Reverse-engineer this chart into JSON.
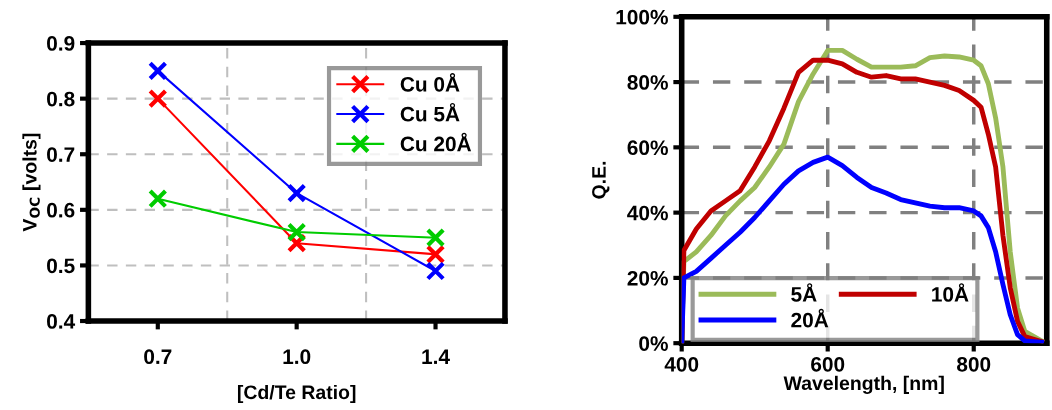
{
  "chart_data": [
    {
      "type": "line",
      "categories": [
        "0.7",
        "1.0",
        "1.4"
      ],
      "xlabel": "[Cd/Te Ratio]",
      "ylabel": "V$_{OC}$ [volts]",
      "ylim": [
        0.4,
        0.9
      ],
      "yticks": [
        0.4,
        0.5,
        0.6,
        0.7,
        0.8,
        0.9
      ],
      "grid": true,
      "legend": "top right",
      "marker": "cross",
      "line_style": "solid",
      "series": [
        {
          "name": "Cu 0Å",
          "color": "#ff0000",
          "values": [
            0.8,
            0.54,
            0.52
          ]
        },
        {
          "name": "Cu 5Å",
          "color": "#0000ff",
          "values": [
            0.85,
            0.63,
            0.49
          ]
        },
        {
          "name": "Cu 20Å",
          "color": "#00cc00",
          "values": [
            0.62,
            0.56,
            0.55
          ]
        }
      ]
    },
    {
      "type": "line",
      "xlabel": "Wavelength, [nm]",
      "ylabel": "Q.E.",
      "xlim": [
        400,
        900
      ],
      "xticks": [
        400,
        600,
        800
      ],
      "ylim": [
        0,
        100
      ],
      "yticks": [
        {
          "value": 0,
          "label": "0%"
        },
        {
          "value": 20,
          "label": "20%"
        },
        {
          "value": 40,
          "label": "40%"
        },
        {
          "value": 60,
          "label": "60%"
        },
        {
          "value": 80,
          "label": "80%"
        },
        {
          "value": 100,
          "label": "100%"
        }
      ],
      "grid": true,
      "legend": "bottom left",
      "marker": "none",
      "line_style": "solid",
      "x": [
        400,
        403,
        420,
        440,
        460,
        480,
        500,
        520,
        540,
        560,
        580,
        600,
        620,
        640,
        660,
        680,
        700,
        720,
        740,
        760,
        780,
        800,
        810,
        820,
        830,
        840,
        850,
        860,
        870,
        893
      ],
      "series": [
        {
          "name": "5Å",
          "color": "#9bbb59",
          "values": [
            0,
            25,
            28,
            33,
            39,
            43.6,
            47.7,
            54,
            61,
            74,
            82.5,
            89.7,
            89.7,
            87,
            84.6,
            84.6,
            84.6,
            85,
            87.5,
            88,
            87.7,
            86.7,
            85,
            79.5,
            69,
            54,
            28,
            10.8,
            3.6,
            0.7
          ]
        },
        {
          "name": "10Å",
          "color": "#c00000",
          "values": [
            0,
            28.4,
            35,
            40.5,
            43.6,
            46.7,
            54,
            62,
            72,
            83,
            86.7,
            86.7,
            85.6,
            83,
            81.5,
            82,
            81,
            81,
            80,
            79,
            77.4,
            74.4,
            72.3,
            64,
            54,
            33,
            17,
            6.7,
            2,
            0.5
          ]
        },
        {
          "name": "20Å",
          "color": "#0000ff",
          "values": [
            0,
            20,
            22,
            26,
            30,
            34,
            38.5,
            43.6,
            48.7,
            52.8,
            55.4,
            57,
            54.4,
            50.8,
            47.7,
            46,
            44,
            43,
            42,
            41.5,
            41.5,
            40.5,
            39,
            35.4,
            28,
            18,
            8.7,
            2.6,
            0.7,
            0.3
          ]
        }
      ]
    }
  ]
}
